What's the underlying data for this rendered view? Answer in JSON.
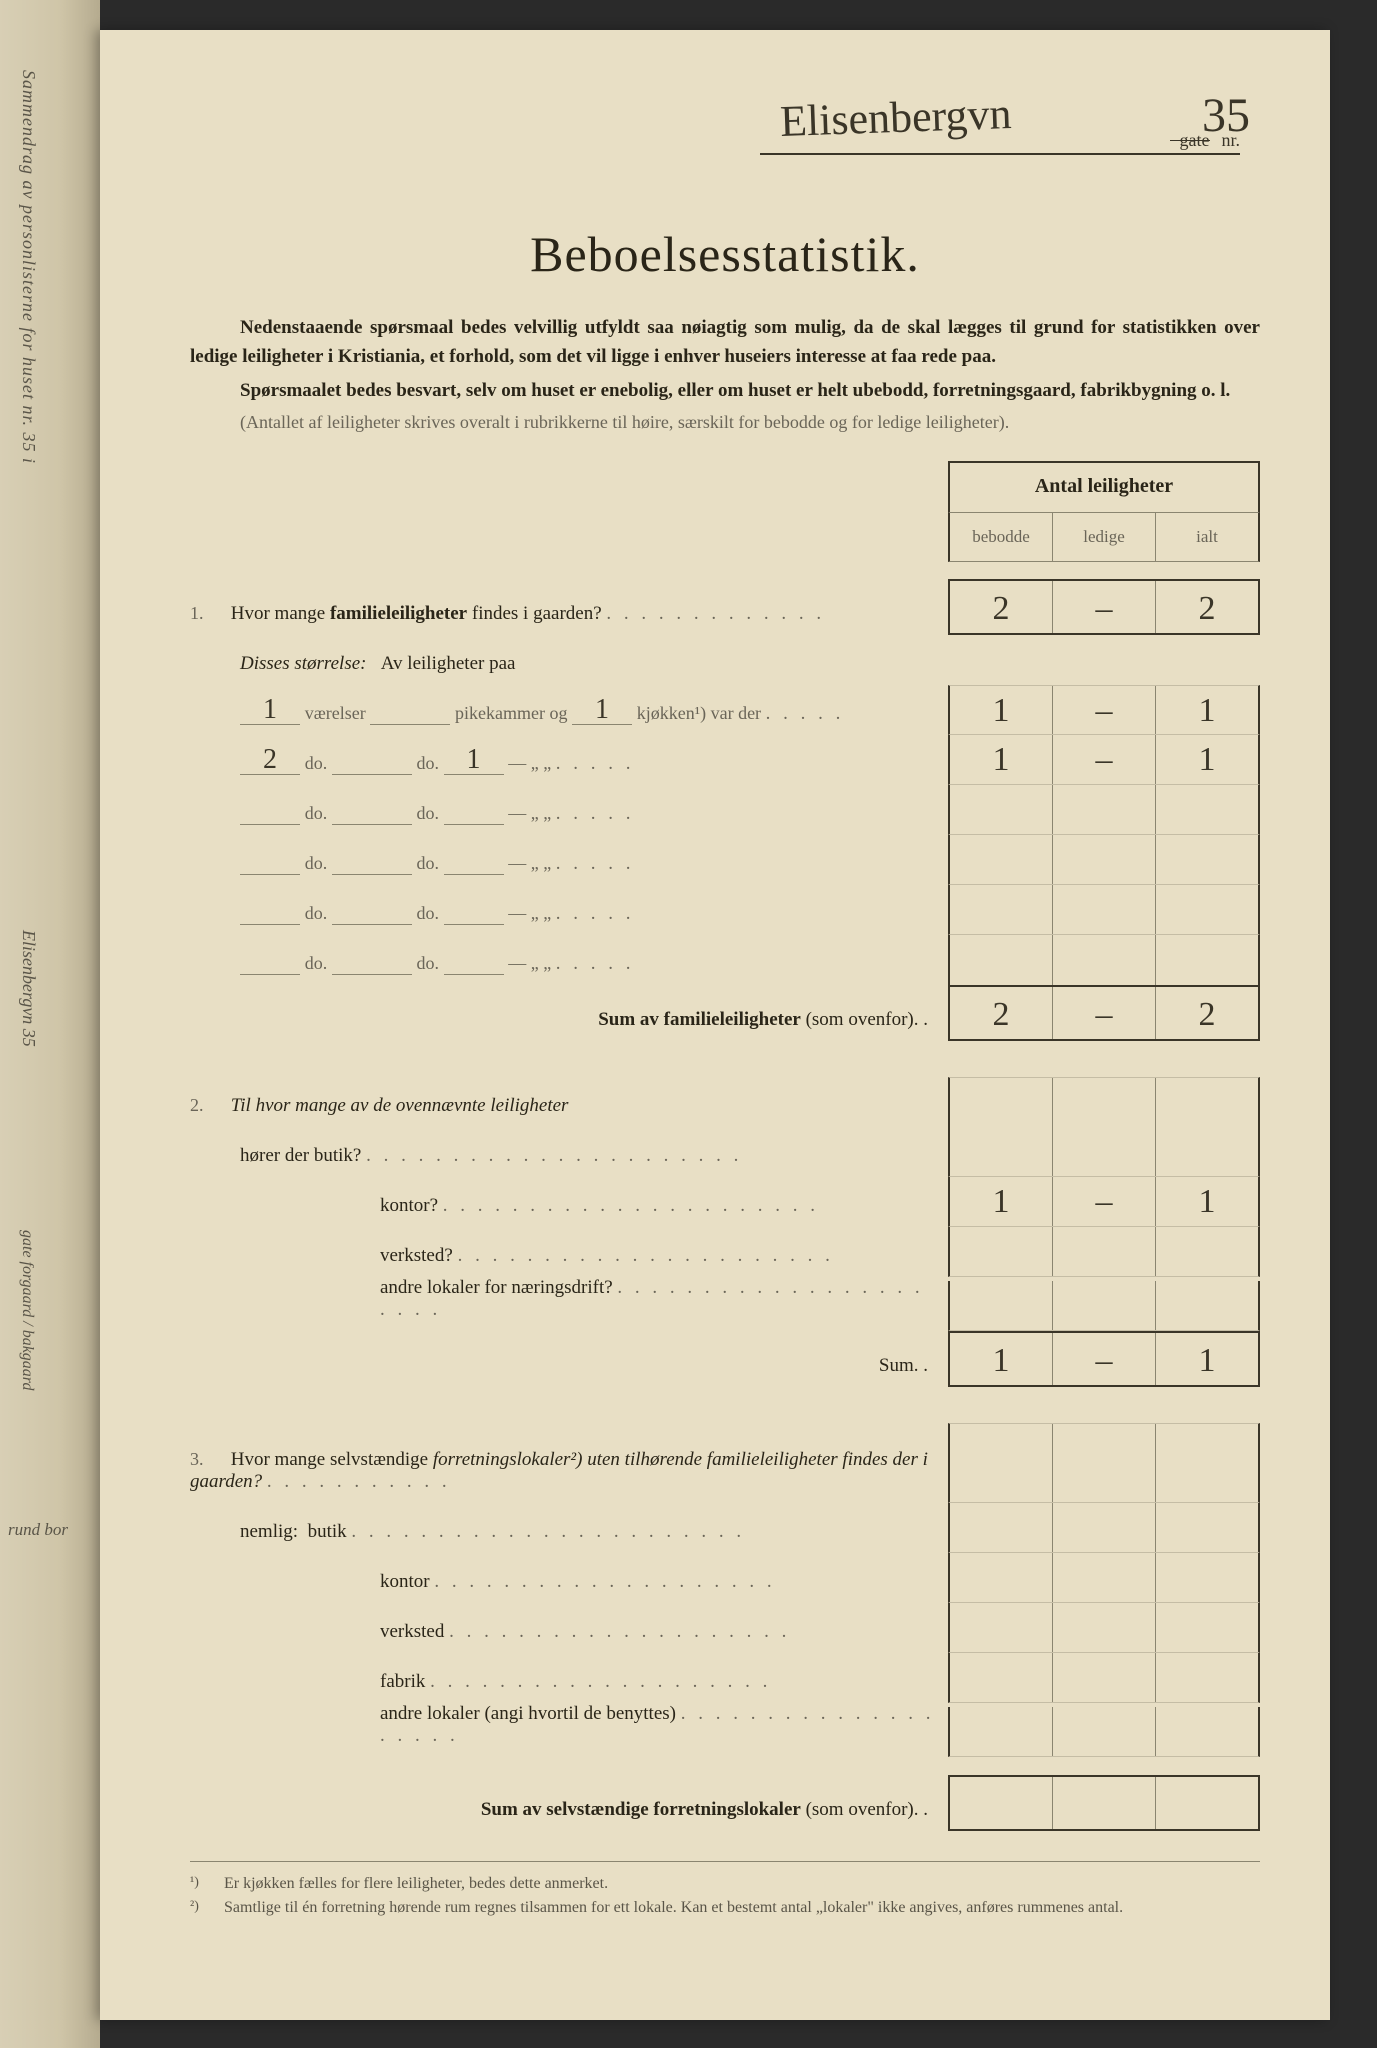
{
  "header": {
    "street_handwritten": "Elisenbergvn",
    "gate_label": "gate",
    "nr_label": "nr.",
    "number_handwritten": "35"
  },
  "title": "Beboelsesstatistik.",
  "intro": {
    "p1": "Nedenstaaende spørsmaal bedes velvillig utfyldt saa nøiagtig som mulig, da de skal lægges til grund for statistikken over ledige leiligheter i Kristiania, et forhold, som det vil ligge i enhver huseiers interesse at faa rede paa.",
    "p2": "Spørsmaalet bedes besvart, selv om huset er enebolig, eller om huset er helt ubebodd, forretningsgaard, fabrikbygning o. l.",
    "note": "(Antallet af leiligheter skrives overalt i rubrikkerne til høire, særskilt for bebodde og for ledige leiligheter)."
  },
  "table_header": {
    "title": "Antal leiligheter",
    "col1": "bebodde",
    "col2": "ledige",
    "col3": "ialt"
  },
  "q1": {
    "num": "1.",
    "text_a": "Hvor mange ",
    "text_b": "familieleiligheter",
    "text_c": " findes i gaarden?",
    "cells": {
      "bebodde": "2",
      "ledige": "–",
      "ialt": "2"
    },
    "disses": "Disses størrelse:",
    "av_label": "Av leiligheter paa",
    "rows": [
      {
        "vaer": "1",
        "vaer_label": "værelser",
        "pike": "",
        "pike_label": "pikekammer og",
        "kj": "1",
        "kj_label": "kjøkken¹) var der",
        "bebodde": "1",
        "ledige": "–",
        "ialt": "1"
      },
      {
        "vaer": "2",
        "vaer_label": "do.",
        "pike": "",
        "pike_label": "do.",
        "kj": "1",
        "kj_label": "—        „    „",
        "bebodde": "1",
        "ledige": "–",
        "ialt": "1"
      },
      {
        "vaer": "",
        "vaer_label": "do.",
        "pike": "",
        "pike_label": "do.",
        "kj": "",
        "kj_label": "—        „    „",
        "bebodde": "",
        "ledige": "",
        "ialt": ""
      },
      {
        "vaer": "",
        "vaer_label": "do.",
        "pike": "",
        "pike_label": "do.",
        "kj": "",
        "kj_label": "—        „    „",
        "bebodde": "",
        "ledige": "",
        "ialt": ""
      },
      {
        "vaer": "",
        "vaer_label": "do.",
        "pike": "",
        "pike_label": "do.",
        "kj": "",
        "kj_label": "—        „    „",
        "bebodde": "",
        "ledige": "",
        "ialt": ""
      },
      {
        "vaer": "",
        "vaer_label": "do.",
        "pike": "",
        "pike_label": "do.",
        "kj": "",
        "kj_label": "—        „    „",
        "bebodde": "",
        "ledige": "",
        "ialt": ""
      }
    ],
    "sum_label": "Sum av familieleiligheter",
    "sum_suffix": " (som ovenfor). .",
    "sum": {
      "bebodde": "2",
      "ledige": "–",
      "ialt": "2"
    }
  },
  "q2": {
    "num": "2.",
    "text": "Til hvor mange av de ovennævnte leiligheter",
    "lines": [
      {
        "label": "hører der butik?",
        "bebodde": "",
        "ledige": "",
        "ialt": ""
      },
      {
        "label": "kontor?",
        "bebodde": "1",
        "ledige": "–",
        "ialt": "1"
      },
      {
        "label": "verksted?",
        "bebodde": "",
        "ledige": "",
        "ialt": ""
      },
      {
        "label": "andre lokaler for næringsdrift?",
        "bebodde": "",
        "ledige": "",
        "ialt": ""
      }
    ],
    "sum_label": "Sum. .",
    "sum": {
      "bebodde": "1",
      "ledige": "–",
      "ialt": "1"
    }
  },
  "q3": {
    "num": "3.",
    "text_a": "Hvor mange selvstændige ",
    "text_b": "forretningslokaler²)",
    "text_c": " uten tilhørende familieleiligheter findes der i gaarden?",
    "nemlig": "nemlig:",
    "lines": [
      {
        "label": "butik"
      },
      {
        "label": "kontor"
      },
      {
        "label": "verksted"
      },
      {
        "label": "fabrik"
      },
      {
        "label": "andre lokaler (angi hvortil de benyttes)"
      }
    ],
    "sum_label": "Sum av selvstændige forretningslokaler",
    "sum_suffix": " (som ovenfor). ."
  },
  "footnotes": {
    "f1_num": "¹)",
    "f1": "Er kjøkken fælles for flere leiligheter, bedes dette anmerket.",
    "f2_num": "²)",
    "f2": "Samtlige til én forretning hørende rum regnes tilsammen for ett lokale.  Kan et bestemt antal „lokaler\" ikke angives, anføres rummenes antal."
  },
  "spine": {
    "line1": "Sammendrag av personlisterne for huset nr. 35  i",
    "line2": "Elisenbergvn 35",
    "line3": "gate   forgaard / bakgaard",
    "rund": "rund bor"
  },
  "colors": {
    "paper": "#e8dfc5",
    "ink": "#2a2518",
    "faded": "#6a6558",
    "rule": "#3a3528"
  }
}
